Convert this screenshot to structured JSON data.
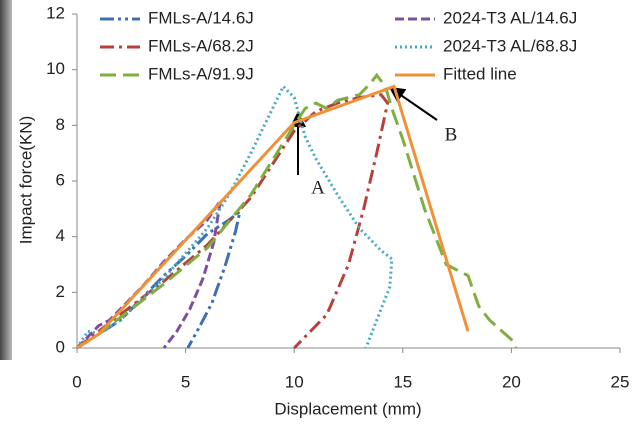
{
  "chart_data": {
    "type": "line",
    "xlabel": "Displacement (mm)",
    "ylabel": "Impact force(KN)",
    "xlim": [
      0,
      25
    ],
    "xticks": [
      0,
      5,
      10,
      15,
      20,
      25
    ],
    "ylim": [
      0,
      12
    ],
    "yticks": [
      0,
      2,
      4,
      6,
      8,
      10,
      12
    ],
    "grid": false,
    "legend": "upper center",
    "annotations": [
      "A",
      "B"
    ],
    "series": [
      {
        "name": "FMLs-A/14.6J",
        "color": "#3d6fb4",
        "dash": "dash-dot-dot",
        "x": [
          0,
          1,
          2,
          3,
          4,
          5,
          6,
          7,
          7.5,
          7.3,
          6.8,
          6.2,
          5.6,
          5.1
        ],
        "values": [
          0,
          0.5,
          1,
          1.8,
          2.6,
          3.3,
          4.1,
          4.6,
          4.9,
          4.2,
          2.9,
          1.6,
          0.7,
          0
        ]
      },
      {
        "name": "2024-T3 AL/14.6J",
        "color": "#7b519e",
        "dash": "dash",
        "x": [
          0,
          0.5,
          1,
          1.5,
          2,
          3,
          4,
          5,
          6,
          6.6,
          6.3,
          5.8,
          5.2,
          4.6,
          4
        ],
        "values": [
          0,
          0.4,
          0.8,
          1,
          1.4,
          2.2,
          3.1,
          3.9,
          4.6,
          5.3,
          3.8,
          2.5,
          1.4,
          0.6,
          0
        ]
      },
      {
        "name": "FMLs-A/68.2J",
        "color": "#b7403a",
        "dash": "dash-dot",
        "x": [
          0,
          2,
          4,
          6,
          8,
          10,
          11,
          12,
          13,
          14,
          14.3,
          13.8,
          13.2,
          12.5,
          11.5,
          10
        ],
        "values": [
          0,
          1.2,
          2.4,
          3.7,
          5.4,
          7.8,
          8.5,
          8.8,
          9,
          9.1,
          8.8,
          7,
          5,
          3,
          1.2,
          0
        ]
      },
      {
        "name": "2024-T3 AL/68.8J",
        "color": "#47a9c5",
        "dash": "dot",
        "x": [
          0,
          0.5,
          1,
          2,
          4,
          6,
          7,
          8,
          9,
          9.5,
          10,
          10.5,
          11,
          12,
          13,
          14,
          14.5,
          14.4,
          14,
          13.6,
          13.3
        ],
        "values": [
          0,
          0.6,
          0.5,
          1,
          2.5,
          4.3,
          5.5,
          7,
          8.6,
          9.4,
          9,
          7.6,
          6.8,
          5.5,
          4.3,
          3.5,
          3.2,
          2.2,
          1.4,
          0.6,
          0
        ]
      },
      {
        "name": "FMLs-A/91.9J",
        "color": "#80ae40",
        "dash": "long-dash",
        "x": [
          0,
          1,
          2,
          4,
          6,
          8,
          10,
          10.5,
          11,
          11.5,
          12,
          13,
          13.5,
          13.8,
          14.2,
          14.5,
          15,
          16,
          17,
          17.5,
          18,
          18.5,
          19,
          20,
          20.2
        ],
        "values": [
          0,
          0.5,
          1.1,
          2.3,
          3.6,
          5.5,
          8,
          8.6,
          8.8,
          8.6,
          8.9,
          9.1,
          9.5,
          9.8,
          9.4,
          8.6,
          7.5,
          5,
          3,
          2.8,
          2.6,
          1.5,
          1,
          0.3,
          0
        ]
      },
      {
        "name": "Fitted line",
        "color": "#f0913a",
        "dash": "solid",
        "x": [
          0,
          1,
          10,
          14.6,
          18
        ],
        "values": [
          0,
          0.5,
          8.1,
          9.4,
          0.6
        ]
      }
    ]
  }
}
